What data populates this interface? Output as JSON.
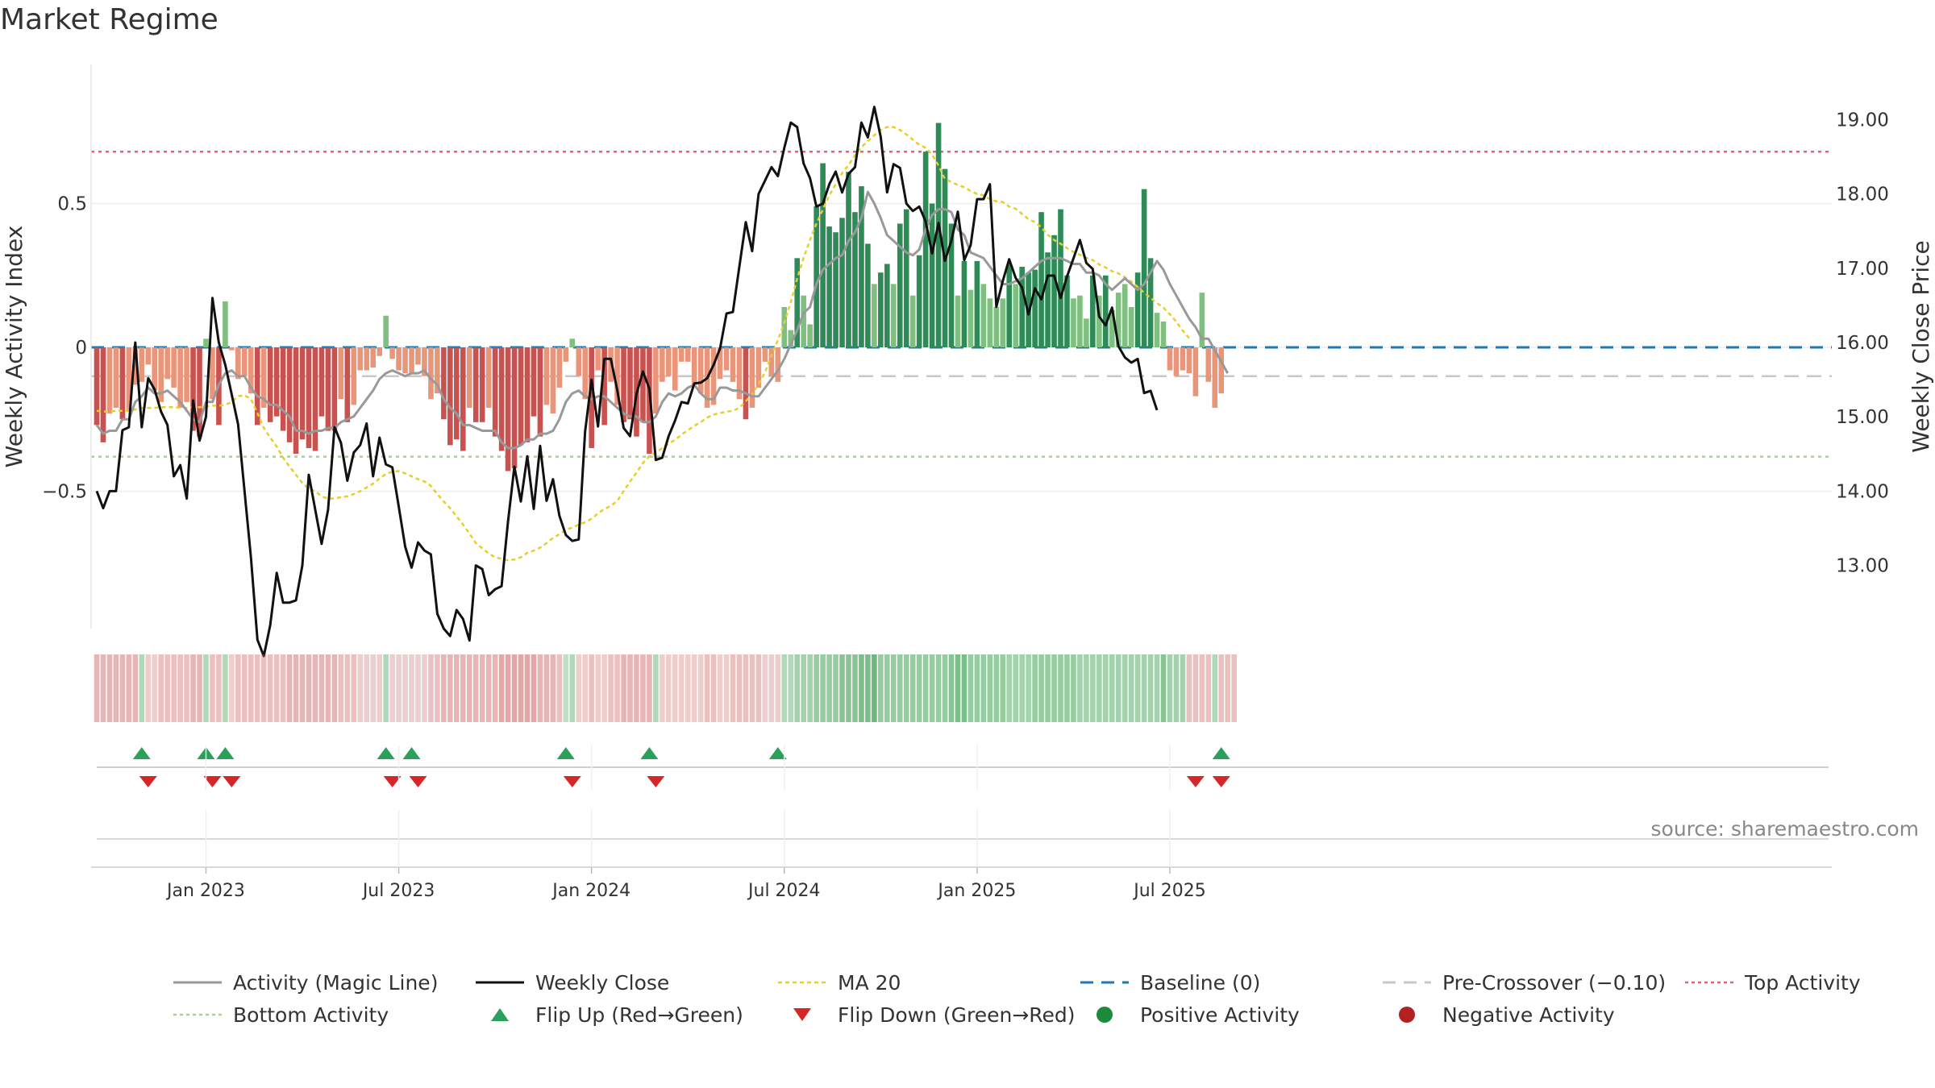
{
  "title": "Market Regime",
  "source": "source: sharemaestro.com",
  "chart_data": {
    "type": "bar",
    "ylabel_left": "Weekly Activity Index",
    "ylabel_right": "Weekly Close Price",
    "left_ticks": [
      {
        "v": 0.5,
        "label": "0.5"
      },
      {
        "v": 0,
        "label": "0"
      },
      {
        "v": -0.5,
        "label": "−0.5"
      }
    ],
    "right_ticks": [
      {
        "v": 13,
        "label": "13.00"
      },
      {
        "v": 14,
        "label": "14.00"
      },
      {
        "v": 15,
        "label": "15.00"
      },
      {
        "v": 16,
        "label": "16.00"
      },
      {
        "v": 17,
        "label": "17.00"
      },
      {
        "v": 18,
        "label": "18.00"
      },
      {
        "v": 19,
        "label": "19.00"
      }
    ],
    "x_ticks": [
      {
        "week": 17,
        "label": "Jan 2023"
      },
      {
        "week": 47,
        "label": "Jul 2023"
      },
      {
        "week": 77,
        "label": "Jan 2024"
      },
      {
        "week": 107,
        "label": "Jul 2024"
      },
      {
        "week": 137,
        "label": "Jan 2025"
      },
      {
        "week": 167,
        "label": "Jul 2025"
      }
    ],
    "levels": {
      "top": 0.68,
      "bottom": -0.38,
      "baseline": 0,
      "pre_crossover": -0.1
    },
    "activity": [
      -0.27,
      -0.33,
      -0.23,
      -0.21,
      -0.25,
      -0.22,
      -0.13,
      -0.12,
      -0.06,
      -0.15,
      -0.19,
      -0.11,
      -0.14,
      -0.21,
      -0.19,
      -0.29,
      -0.31,
      0.03,
      -0.18,
      -0.27,
      0.16,
      -0.01,
      -0.11,
      -0.1,
      -0.16,
      -0.27,
      -0.21,
      -0.26,
      -0.24,
      -0.29,
      -0.33,
      -0.37,
      -0.32,
      -0.35,
      -0.36,
      -0.24,
      -0.29,
      -0.29,
      -0.18,
      -0.26,
      -0.2,
      -0.08,
      -0.08,
      -0.07,
      -0.03,
      0.11,
      -0.04,
      -0.08,
      -0.09,
      -0.09,
      -0.06,
      -0.1,
      -0.18,
      -0.16,
      -0.25,
      -0.34,
      -0.32,
      -0.36,
      -0.21,
      -0.26,
      -0.26,
      -0.21,
      -0.31,
      -0.36,
      -0.43,
      -0.42,
      -0.34,
      -0.33,
      -0.24,
      -0.31,
      -0.2,
      -0.23,
      -0.14,
      -0.05,
      0.03,
      -0.1,
      -0.18,
      -0.35,
      -0.08,
      -0.27,
      -0.12,
      -0.2,
      -0.26,
      -0.25,
      -0.31,
      -0.26,
      -0.37,
      -0.23,
      -0.12,
      -0.1,
      -0.15,
      -0.05,
      -0.05,
      -0.13,
      -0.16,
      -0.21,
      -0.2,
      -0.11,
      -0.08,
      -0.12,
      -0.18,
      -0.25,
      -0.21,
      -0.14,
      -0.05,
      -0.1,
      -0.12,
      0.14,
      0.06,
      0.31,
      0.18,
      0.08,
      0.49,
      0.64,
      0.42,
      0.4,
      0.45,
      0.61,
      0.47,
      0.56,
      0.36,
      0.22,
      0.26,
      0.29,
      0.22,
      0.43,
      0.48,
      0.18,
      0.32,
      0.68,
      0.5,
      0.78,
      0.62,
      0.43,
      0.18,
      0.3,
      0.2,
      0.3,
      0.22,
      0.17,
      0.14,
      0.17,
      0.29,
      0.22,
      0.28,
      0.26,
      0.27,
      0.47,
      0.33,
      0.39,
      0.48,
      0.25,
      0.17,
      0.18,
      0.1,
      0.25,
      0.18,
      0.25,
      0.13,
      0.19,
      0.22,
      0.14,
      0.26,
      0.55,
      0.31,
      0.12,
      0.09,
      -0.08,
      -0.1,
      -0.08,
      -0.09,
      -0.17,
      0.19,
      -0.12,
      -0.21,
      -0.16
    ],
    "magic_line": [
      -0.27,
      -0.3,
      -0.29,
      -0.29,
      -0.25,
      -0.25,
      -0.19,
      -0.17,
      -0.14,
      -0.16,
      -0.16,
      -0.15,
      -0.17,
      -0.19,
      -0.22,
      -0.25,
      -0.26,
      -0.19,
      -0.19,
      -0.13,
      -0.09,
      -0.08,
      -0.1,
      -0.1,
      -0.14,
      -0.17,
      -0.18,
      -0.2,
      -0.2,
      -0.22,
      -0.24,
      -0.29,
      -0.29,
      -0.3,
      -0.29,
      -0.29,
      -0.28,
      -0.28,
      -0.26,
      -0.25,
      -0.24,
      -0.21,
      -0.18,
      -0.15,
      -0.11,
      -0.09,
      -0.08,
      -0.09,
      -0.1,
      -0.09,
      -0.09,
      -0.08,
      -0.11,
      -0.13,
      -0.18,
      -0.21,
      -0.23,
      -0.27,
      -0.27,
      -0.28,
      -0.29,
      -0.29,
      -0.29,
      -0.33,
      -0.35,
      -0.35,
      -0.34,
      -0.32,
      -0.32,
      -0.3,
      -0.3,
      -0.29,
      -0.25,
      -0.19,
      -0.16,
      -0.15,
      -0.17,
      -0.18,
      -0.17,
      -0.17,
      -0.19,
      -0.21,
      -0.23,
      -0.24,
      -0.24,
      -0.26,
      -0.26,
      -0.24,
      -0.19,
      -0.16,
      -0.17,
      -0.16,
      -0.14,
      -0.13,
      -0.16,
      -0.18,
      -0.18,
      -0.14,
      -0.14,
      -0.15,
      -0.15,
      -0.16,
      -0.17,
      -0.17,
      -0.14,
      -0.11,
      -0.08,
      -0.04,
      0.01,
      0.06,
      0.12,
      0.14,
      0.22,
      0.27,
      0.29,
      0.31,
      0.32,
      0.37,
      0.4,
      0.45,
      0.54,
      0.5,
      0.45,
      0.39,
      0.37,
      0.35,
      0.33,
      0.32,
      0.34,
      0.41,
      0.46,
      0.48,
      0.48,
      0.47,
      0.41,
      0.39,
      0.33,
      0.32,
      0.31,
      0.28,
      0.25,
      0.22,
      0.22,
      0.23,
      0.24,
      0.26,
      0.28,
      0.3,
      0.31,
      0.31,
      0.31,
      0.3,
      0.29,
      0.29,
      0.26,
      0.26,
      0.25,
      0.22,
      0.2,
      0.22,
      0.24,
      0.22,
      0.2,
      0.22,
      0.26,
      0.3,
      0.27,
      0.22,
      0.18,
      0.14,
      0.1,
      0.07,
      0.03,
      0.03,
      -0.01,
      -0.05,
      -0.09
    ],
    "weekly_close": [
      14.0,
      13.77,
      14.0,
      14.0,
      14.82,
      14.86,
      16.0,
      14.86,
      15.52,
      15.37,
      15.07,
      14.89,
      14.2,
      14.35,
      13.9,
      15.22,
      14.68,
      15.0,
      16.6,
      16.0,
      15.7,
      15.3,
      14.9,
      14.0,
      13.1,
      12.0,
      11.78,
      12.2,
      12.9,
      12.5,
      12.5,
      12.53,
      13.0,
      14.22,
      13.75,
      13.29,
      13.75,
      14.86,
      14.65,
      14.14,
      14.52,
      14.62,
      14.91,
      14.2,
      14.72,
      14.36,
      14.32,
      13.79,
      13.25,
      12.97,
      13.31,
      13.2,
      13.15,
      12.35,
      12.15,
      12.05,
      12.4,
      12.28,
      11.99,
      13.0,
      12.95,
      12.6,
      12.68,
      12.72,
      13.59,
      14.33,
      13.86,
      14.47,
      13.76,
      14.61,
      13.87,
      14.16,
      13.67,
      13.41,
      13.33,
      13.35,
      14.8,
      15.5,
      14.87,
      15.78,
      15.78,
      15.36,
      14.85,
      14.74,
      15.31,
      15.61,
      15.38,
      14.42,
      14.45,
      14.74,
      14.95,
      15.2,
      15.18,
      15.45,
      15.46,
      15.52,
      15.7,
      15.92,
      16.39,
      16.41,
      17.02,
      17.62,
      17.23,
      18.0,
      18.18,
      18.36,
      18.24,
      18.62,
      18.96,
      18.9,
      18.41,
      18.21,
      17.83,
      17.87,
      18.13,
      18.3,
      18.02,
      18.27,
      18.36,
      18.96,
      18.76,
      19.17,
      18.77,
      18.02,
      18.4,
      18.35,
      17.87,
      17.77,
      17.83,
      17.63,
      17.2,
      17.61,
      17.1,
      17.37,
      17.76,
      17.11,
      17.31,
      17.93,
      17.93,
      18.13,
      16.48,
      16.83,
      17.12,
      16.87,
      16.74,
      16.38,
      16.73,
      16.58,
      16.9,
      16.9,
      16.6,
      16.89,
      17.13,
      17.38,
      17.07,
      16.99,
      16.35,
      16.23,
      16.47,
      15.95,
      15.8,
      15.73,
      15.78,
      15.32,
      15.35,
      15.09
    ],
    "ma20": [
      15.08,
      15.07,
      15.07,
      15.08,
      15.08,
      15.08,
      15.1,
      15.12,
      15.12,
      15.12,
      15.13,
      15.13,
      15.13,
      15.12,
      15.12,
      15.13,
      15.13,
      15.14,
      15.15,
      15.15,
      15.16,
      15.2,
      15.28,
      15.29,
      15.24,
      15.05,
      14.85,
      14.72,
      14.6,
      14.45,
      14.33,
      14.22,
      14.11,
      14.03,
      14.0,
      13.93,
      13.9,
      13.9,
      13.92,
      13.93,
      13.96,
      14.0,
      14.05,
      14.1,
      14.17,
      14.23,
      14.26,
      14.27,
      14.24,
      14.2,
      14.16,
      14.13,
      14.07,
      13.96,
      13.86,
      13.77,
      13.66,
      13.55,
      13.43,
      13.3,
      13.23,
      13.16,
      13.11,
      13.09,
      13.07,
      13.08,
      13.11,
      13.17,
      13.2,
      13.24,
      13.3,
      13.37,
      13.42,
      13.48,
      13.51,
      13.55,
      13.58,
      13.63,
      13.7,
      13.76,
      13.8,
      13.87,
      14.0,
      14.13,
      14.25,
      14.38,
      14.47,
      14.52,
      14.58,
      14.64,
      14.69,
      14.76,
      14.82,
      14.88,
      14.93,
      14.99,
      15.03,
      15.05,
      15.07,
      15.08,
      15.12,
      15.21,
      15.3,
      15.44,
      15.6,
      15.83,
      16.03,
      16.27,
      16.54,
      16.86,
      17.14,
      17.38,
      17.6,
      17.79,
      17.98,
      18.13,
      18.28,
      18.39,
      18.52,
      18.63,
      18.71,
      18.79,
      18.86,
      18.9,
      18.9,
      18.86,
      18.8,
      18.73,
      18.66,
      18.62,
      18.53,
      18.38,
      18.2,
      18.16,
      18.12,
      18.09,
      18.04,
      18.0,
      17.98,
      17.93,
      17.9,
      17.89,
      17.83,
      17.8,
      17.73,
      17.66,
      17.62,
      17.55,
      17.45,
      17.38,
      17.33,
      17.27,
      17.22,
      17.18,
      17.14,
      17.11,
      17.05,
      17.01,
      16.96,
      16.93,
      16.88,
      16.82,
      16.75,
      16.67,
      16.6,
      16.53,
      16.47,
      16.38,
      16.28,
      16.16,
      16.06
    ],
    "flip_up_weeks": [
      7,
      17,
      20,
      45,
      49,
      73,
      86,
      106,
      175
    ],
    "flip_down_weeks": [
      8,
      18,
      21,
      46,
      50,
      74,
      87,
      171,
      175
    ],
    "regime_strip": [
      -0.4,
      -0.4,
      -0.4,
      -0.4,
      -0.4,
      -0.4,
      -0.4,
      0.3,
      -0.2,
      -0.2,
      -0.3,
      -0.3,
      -0.3,
      -0.3,
      -0.3,
      -0.4,
      -0.4,
      0.3,
      -0.3,
      -0.3,
      0.3,
      -0.2,
      -0.3,
      -0.3,
      -0.3,
      -0.3,
      -0.3,
      -0.3,
      -0.3,
      -0.3,
      -0.4,
      -0.4,
      -0.4,
      -0.4,
      -0.4,
      -0.4,
      -0.4,
      -0.4,
      -0.3,
      -0.3,
      -0.3,
      -0.2,
      -0.2,
      -0.2,
      -0.2,
      0.3,
      -0.2,
      -0.2,
      -0.2,
      -0.2,
      -0.2,
      -0.2,
      -0.3,
      -0.3,
      -0.4,
      -0.4,
      -0.4,
      -0.4,
      -0.4,
      -0.4,
      -0.4,
      -0.4,
      -0.4,
      -0.5,
      -0.5,
      -0.5,
      -0.5,
      -0.5,
      -0.5,
      -0.4,
      -0.4,
      -0.4,
      -0.3,
      0.2,
      0.3,
      -0.2,
      -0.2,
      -0.3,
      -0.2,
      -0.2,
      -0.3,
      -0.3,
      -0.4,
      -0.4,
      -0.4,
      -0.4,
      -0.4,
      0.3,
      -0.2,
      -0.2,
      -0.2,
      -0.2,
      -0.2,
      -0.2,
      -0.2,
      -0.3,
      -0.3,
      -0.2,
      -0.2,
      -0.3,
      -0.3,
      -0.3,
      -0.3,
      -0.3,
      -0.2,
      -0.2,
      -0.2,
      0.3,
      0.3,
      0.4,
      0.4,
      0.4,
      0.5,
      0.5,
      0.5,
      0.5,
      0.6,
      0.6,
      0.6,
      0.7,
      0.7,
      0.8,
      0.5,
      0.5,
      0.5,
      0.5,
      0.5,
      0.5,
      0.5,
      0.5,
      0.5,
      0.5,
      0.5,
      0.6,
      0.7,
      0.7,
      0.5,
      0.5,
      0.5,
      0.5,
      0.5,
      0.5,
      0.4,
      0.4,
      0.4,
      0.4,
      0.5,
      0.5,
      0.5,
      0.5,
      0.5,
      0.5,
      0.5,
      0.4,
      0.4,
      0.4,
      0.4,
      0.4,
      0.4,
      0.4,
      0.4,
      0.4,
      0.4,
      0.4,
      0.4,
      0.4,
      0.6,
      0.4,
      0.4,
      0.4,
      -0.3,
      -0.3,
      -0.3,
      -0.3,
      0.3,
      -0.3,
      -0.3,
      -0.3
    ],
    "colors": {
      "pos_dark": "#2e8b57",
      "pos_light": "#7fbf7f",
      "neg_dark": "#c85250",
      "neg_light": "#e8957a",
      "magic_line": "#999999",
      "weekly_close": "#111111",
      "ma20": "#e6cf2a",
      "baseline": "#1f77b4",
      "pre_crossover": "#c8c8c8",
      "top": "#e06377",
      "bottom": "#a9d18e",
      "flip_up": "#2aa05a",
      "flip_down": "#d62728"
    },
    "legend": [
      {
        "key": "magic",
        "label": "Activity (Magic Line)",
        "icon": "line-solid-gray"
      },
      {
        "key": "close",
        "label": "Weekly Close",
        "icon": "line-solid-black"
      },
      {
        "key": "ma20",
        "label": "MA 20",
        "icon": "line-dotted-yellow"
      },
      {
        "key": "baseline",
        "label": "Baseline (0)",
        "icon": "line-dashed-blue"
      },
      {
        "key": "pre",
        "label": "Pre-Crossover (−0.10)",
        "icon": "line-dashed-gray"
      },
      {
        "key": "top",
        "label": "Top Activity",
        "icon": "line-dotted-red"
      },
      {
        "key": "bottom",
        "label": "Bottom Activity",
        "icon": "line-dotted-green"
      },
      {
        "key": "flipup",
        "label": "Flip Up (Red→Green)",
        "icon": "triangle-up-green"
      },
      {
        "key": "flipdown",
        "label": "Flip Down (Green→Red)",
        "icon": "triangle-down-red"
      },
      {
        "key": "pos",
        "label": "Positive Activity",
        "icon": "circle-green"
      },
      {
        "key": "neg",
        "label": "Negative Activity",
        "icon": "circle-red"
      }
    ]
  }
}
